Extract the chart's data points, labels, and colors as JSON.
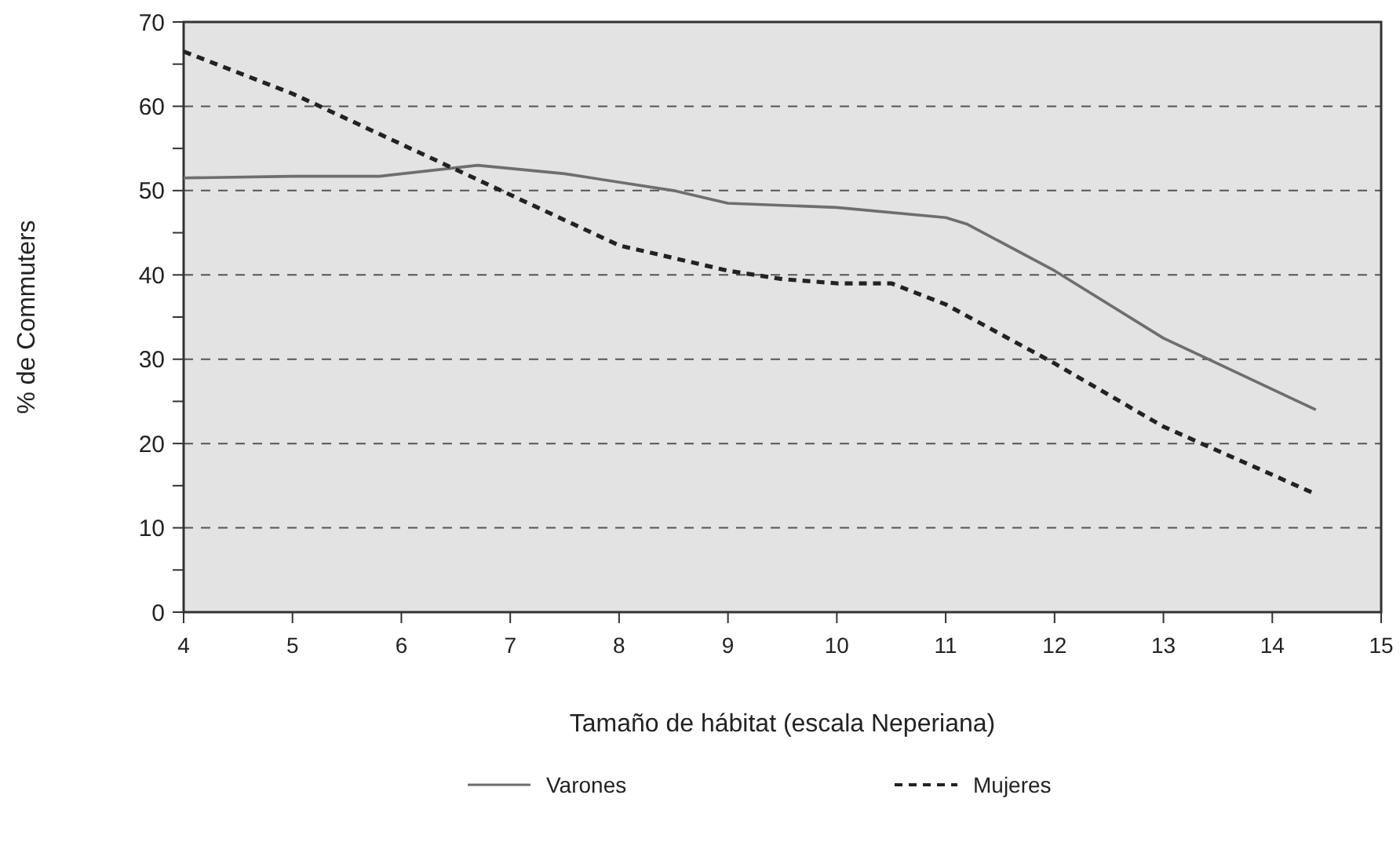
{
  "chart_data": {
    "type": "line",
    "xlabel": "Tamaño de hábitat (escala Neperiana)",
    "ylabel": "% de Commuters",
    "xlim": [
      4,
      15
    ],
    "xticks": [
      4,
      5,
      6,
      7,
      8,
      9,
      10,
      11,
      12,
      13,
      14,
      15
    ],
    "ylim": [
      0,
      70
    ],
    "yticks": [
      0,
      {
        "value": 5,
        "label": null
      },
      10,
      {
        "value": 15,
        "label": null
      },
      20,
      {
        "value": 25,
        "label": null
      },
      30,
      {
        "value": 35,
        "label": null
      },
      40,
      {
        "value": 45,
        "label": null
      },
      50,
      {
        "value": 55,
        "label": null
      },
      60,
      {
        "value": 65,
        "label": null
      },
      70
    ],
    "grid": "y",
    "legend": "bottom",
    "marker": "none",
    "series": [
      {
        "name": "Varones",
        "color": "#6e6e6e",
        "line_style": "solid",
        "x": [
          4,
          5,
          5.8,
          6.7,
          7.5,
          8.5,
          9,
          10,
          11,
          11.2,
          12,
          13,
          14.4
        ],
        "values": [
          51.5,
          51.7,
          51.7,
          53,
          52,
          50,
          48.5,
          48,
          46.8,
          46,
          40.5,
          32.5,
          24
        ]
      },
      {
        "name": "Mujeres",
        "color": "#222222",
        "line_style": "dashed",
        "x": [
          4,
          5,
          6,
          7,
          8,
          9,
          9.5,
          10,
          10.5,
          11,
          12,
          13,
          14.4
        ],
        "values": [
          66.5,
          61.5,
          55.5,
          49.5,
          43.5,
          40.5,
          39.5,
          39,
          39,
          36.5,
          29.5,
          22,
          14
        ]
      }
    ]
  }
}
